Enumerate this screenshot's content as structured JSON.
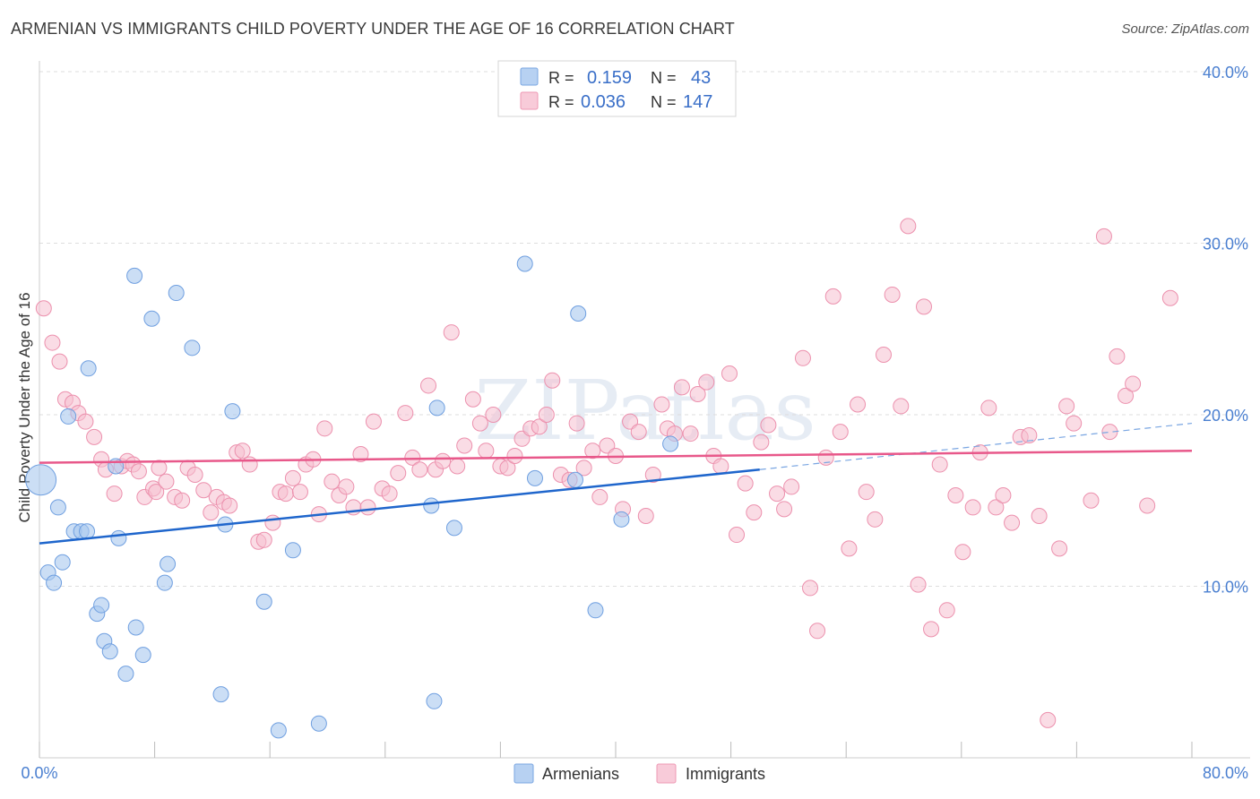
{
  "header": {
    "title": "ARMENIAN VS IMMIGRANTS CHILD POVERTY UNDER THE AGE OF 16 CORRELATION CHART",
    "source": "Source: ZipAtlas.com"
  },
  "watermark": "ZIPatlas",
  "colors": {
    "armenians_fill": "#a9c8ef",
    "armenians_stroke": "#6f9fe0",
    "armenians_line": "#1f66cc",
    "immigrants_fill": "#f6bfd0",
    "immigrants_stroke": "#ec90ad",
    "immigrants_line": "#e8588a",
    "axis_label": "#4a7fd0"
  },
  "legend": {
    "rows": [
      {
        "r_label": "R =",
        "r_value": "0.159",
        "n_label": "N =",
        "n_value": "43"
      },
      {
        "r_label": "R =",
        "r_value": "0.036",
        "n_label": "N =",
        "n_value": "147"
      }
    ]
  },
  "bottom_legend": {
    "armenians": "Armenians",
    "immigrants": "Immigrants"
  },
  "chart_data": {
    "type": "scatter",
    "title": "ARMENIAN VS IMMIGRANTS CHILD POVERTY UNDER THE AGE OF 16 CORRELATION CHART",
    "xlabel": "",
    "ylabel": "Child Poverty Under the Age of 16",
    "xlim": [
      0,
      80
    ],
    "ylim": [
      0,
      40
    ],
    "x_tick_labels": [
      "0.0%",
      "80.0%"
    ],
    "y_tick_labels": [
      "10.0%",
      "20.0%",
      "30.0%",
      "40.0%"
    ],
    "y_ticks": [
      10,
      20,
      30,
      40
    ],
    "series": [
      {
        "name": "Armenians",
        "r": 0.159,
        "n": 43,
        "trend": {
          "x0": 0,
          "y0": 12.5,
          "x1": 50,
          "y1": 16.8,
          "dash_to_x": 80,
          "dash_to_y": 19.5
        },
        "points": [
          [
            0.1,
            16.2
          ],
          [
            0.6,
            10.8
          ],
          [
            1.0,
            10.2
          ],
          [
            1.3,
            14.6
          ],
          [
            1.6,
            11.4
          ],
          [
            2.0,
            19.9
          ],
          [
            2.4,
            13.2
          ],
          [
            2.9,
            13.2
          ],
          [
            3.3,
            13.2
          ],
          [
            3.4,
            22.7
          ],
          [
            4.0,
            8.4
          ],
          [
            4.3,
            8.9
          ],
          [
            4.5,
            6.8
          ],
          [
            4.9,
            6.2
          ],
          [
            5.3,
            17.0
          ],
          [
            5.5,
            12.8
          ],
          [
            6.0,
            4.9
          ],
          [
            6.6,
            28.1
          ],
          [
            6.7,
            7.6
          ],
          [
            7.2,
            6.0
          ],
          [
            7.8,
            25.6
          ],
          [
            8.7,
            10.2
          ],
          [
            8.9,
            11.3
          ],
          [
            9.5,
            27.1
          ],
          [
            10.6,
            23.9
          ],
          [
            12.6,
            3.7
          ],
          [
            12.9,
            13.6
          ],
          [
            13.4,
            20.2
          ],
          [
            15.6,
            9.1
          ],
          [
            16.6,
            1.6
          ],
          [
            17.6,
            12.1
          ],
          [
            19.4,
            2.0
          ],
          [
            27.2,
            14.7
          ],
          [
            27.4,
            3.3
          ],
          [
            27.6,
            20.4
          ],
          [
            28.8,
            13.4
          ],
          [
            33.7,
            28.8
          ],
          [
            34.4,
            16.3
          ],
          [
            37.2,
            16.2
          ],
          [
            37.4,
            25.9
          ],
          [
            38.6,
            8.6
          ],
          [
            40.4,
            13.9
          ],
          [
            43.8,
            18.3
          ]
        ]
      },
      {
        "name": "Immigrants",
        "r": 0.036,
        "n": 147,
        "trend": {
          "x0": 0,
          "y0": 17.2,
          "x1": 80,
          "y1": 17.9
        },
        "points": [
          [
            0.3,
            26.2
          ],
          [
            0.9,
            24.2
          ],
          [
            1.4,
            23.1
          ],
          [
            1.8,
            20.9
          ],
          [
            2.3,
            20.7
          ],
          [
            2.7,
            20.1
          ],
          [
            3.2,
            19.6
          ],
          [
            3.8,
            18.7
          ],
          [
            4.3,
            17.4
          ],
          [
            4.6,
            16.8
          ],
          [
            5.2,
            15.4
          ],
          [
            5.7,
            17.0
          ],
          [
            6.1,
            17.3
          ],
          [
            6.5,
            17.1
          ],
          [
            6.9,
            16.7
          ],
          [
            7.3,
            15.2
          ],
          [
            7.9,
            15.7
          ],
          [
            8.1,
            15.5
          ],
          [
            8.3,
            16.9
          ],
          [
            8.8,
            16.1
          ],
          [
            9.4,
            15.2
          ],
          [
            9.9,
            15.0
          ],
          [
            10.3,
            16.9
          ],
          [
            10.8,
            16.5
          ],
          [
            11.4,
            15.6
          ],
          [
            11.9,
            14.3
          ],
          [
            12.3,
            15.2
          ],
          [
            12.8,
            14.9
          ],
          [
            13.2,
            14.7
          ],
          [
            13.7,
            17.8
          ],
          [
            14.1,
            17.9
          ],
          [
            14.6,
            17.1
          ],
          [
            15.2,
            12.6
          ],
          [
            15.6,
            12.7
          ],
          [
            16.2,
            13.7
          ],
          [
            16.7,
            15.5
          ],
          [
            17.1,
            15.4
          ],
          [
            17.6,
            16.3
          ],
          [
            18.1,
            15.5
          ],
          [
            18.5,
            17.1
          ],
          [
            19.0,
            17.4
          ],
          [
            19.4,
            14.2
          ],
          [
            19.8,
            19.2
          ],
          [
            20.3,
            16.1
          ],
          [
            20.8,
            15.3
          ],
          [
            21.3,
            15.8
          ],
          [
            21.8,
            14.6
          ],
          [
            22.3,
            17.7
          ],
          [
            22.8,
            14.6
          ],
          [
            23.2,
            19.6
          ],
          [
            23.8,
            15.7
          ],
          [
            24.3,
            15.4
          ],
          [
            24.9,
            16.6
          ],
          [
            25.4,
            20.1
          ],
          [
            25.9,
            17.5
          ],
          [
            26.4,
            16.8
          ],
          [
            27.0,
            21.7
          ],
          [
            27.5,
            16.8
          ],
          [
            28.0,
            17.3
          ],
          [
            28.6,
            24.8
          ],
          [
            29.0,
            17.0
          ],
          [
            29.5,
            18.2
          ],
          [
            30.1,
            20.9
          ],
          [
            30.6,
            19.5
          ],
          [
            31.0,
            17.9
          ],
          [
            31.5,
            20.0
          ],
          [
            32.0,
            17.0
          ],
          [
            32.5,
            16.9
          ],
          [
            33.0,
            17.6
          ],
          [
            33.5,
            18.6
          ],
          [
            34.1,
            19.2
          ],
          [
            34.7,
            19.3
          ],
          [
            35.2,
            20.0
          ],
          [
            35.6,
            22.0
          ],
          [
            36.2,
            16.5
          ],
          [
            36.8,
            16.2
          ],
          [
            37.3,
            19.5
          ],
          [
            37.8,
            16.9
          ],
          [
            38.4,
            17.9
          ],
          [
            38.9,
            15.2
          ],
          [
            39.4,
            18.2
          ],
          [
            40.0,
            17.6
          ],
          [
            40.5,
            14.5
          ],
          [
            41.0,
            19.6
          ],
          [
            41.6,
            19.0
          ],
          [
            42.1,
            14.1
          ],
          [
            42.6,
            16.5
          ],
          [
            43.2,
            20.6
          ],
          [
            43.6,
            19.2
          ],
          [
            44.1,
            18.9
          ],
          [
            44.6,
            21.6
          ],
          [
            45.2,
            18.9
          ],
          [
            45.7,
            21.2
          ],
          [
            46.3,
            21.9
          ],
          [
            46.8,
            17.6
          ],
          [
            47.3,
            17.0
          ],
          [
            47.9,
            22.4
          ],
          [
            48.4,
            13.0
          ],
          [
            49.0,
            16.0
          ],
          [
            49.6,
            14.3
          ],
          [
            50.1,
            18.4
          ],
          [
            50.6,
            19.4
          ],
          [
            51.2,
            15.4
          ],
          [
            51.7,
            14.5
          ],
          [
            52.2,
            15.8
          ],
          [
            53.0,
            23.3
          ],
          [
            53.5,
            9.9
          ],
          [
            54.0,
            7.4
          ],
          [
            54.6,
            17.5
          ],
          [
            55.1,
            26.9
          ],
          [
            55.6,
            19.0
          ],
          [
            56.2,
            12.2
          ],
          [
            56.8,
            20.6
          ],
          [
            57.4,
            15.5
          ],
          [
            58.0,
            13.9
          ],
          [
            58.6,
            23.5
          ],
          [
            59.2,
            27.0
          ],
          [
            59.8,
            20.5
          ],
          [
            60.3,
            31.0
          ],
          [
            61.0,
            10.1
          ],
          [
            61.4,
            26.3
          ],
          [
            61.9,
            7.5
          ],
          [
            62.5,
            17.1
          ],
          [
            63.0,
            8.6
          ],
          [
            63.6,
            15.3
          ],
          [
            64.1,
            12.0
          ],
          [
            64.8,
            14.6
          ],
          [
            65.3,
            17.8
          ],
          [
            65.9,
            20.4
          ],
          [
            66.4,
            14.6
          ],
          [
            66.9,
            15.3
          ],
          [
            67.5,
            13.7
          ],
          [
            68.1,
            18.7
          ],
          [
            68.7,
            18.8
          ],
          [
            69.4,
            14.1
          ],
          [
            70.0,
            2.2
          ],
          [
            70.8,
            12.2
          ],
          [
            71.3,
            20.5
          ],
          [
            71.8,
            19.5
          ],
          [
            73.0,
            15.0
          ],
          [
            73.9,
            30.4
          ],
          [
            74.3,
            19.0
          ],
          [
            74.8,
            23.4
          ],
          [
            75.4,
            21.1
          ],
          [
            75.9,
            21.8
          ],
          [
            76.9,
            14.7
          ],
          [
            78.5,
            26.8
          ]
        ]
      }
    ]
  }
}
